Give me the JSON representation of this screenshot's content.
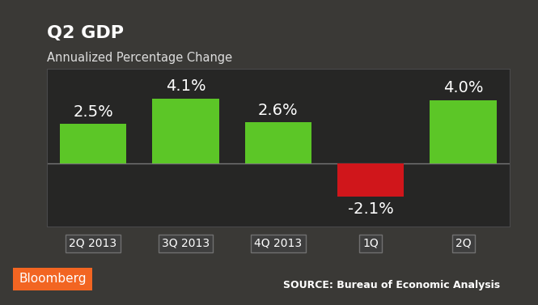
{
  "chart_data": {
    "type": "bar",
    "title": "Q2 GDP",
    "subtitle": "Annualized Percentage Change",
    "categories": [
      "2Q 2013",
      "3Q 2013",
      "4Q 2013",
      "1Q",
      "2Q"
    ],
    "values": [
      2.5,
      4.1,
      2.6,
      -2.1,
      4.0
    ],
    "value_labels": [
      "2.5%",
      "4.1%",
      "2.6%",
      "-2.1%",
      "4.0%"
    ],
    "colors": [
      "#5cc627",
      "#5cc627",
      "#5cc627",
      "#d0161b",
      "#5cc627"
    ],
    "ylim": [
      -4,
      6
    ],
    "tick_labels": "x",
    "data_labels": true,
    "grid": false,
    "annotations": [
      "Bloomberg",
      "SOURCE: Bureau of Economic Analysis"
    ]
  }
}
